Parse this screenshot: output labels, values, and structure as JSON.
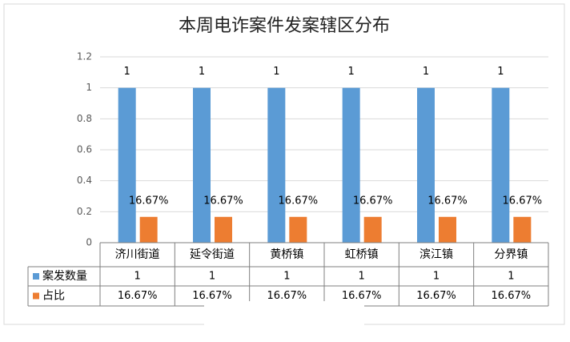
{
  "chart_data": {
    "type": "bar",
    "title": "本周电诈案件发案辖区分布",
    "categories": [
      "济川街道",
      "延令街道",
      "黄桥镇",
      "虹桥镇",
      "滨江镇",
      "分界镇"
    ],
    "series": [
      {
        "name": "案发数量",
        "color": "#5b9bd5",
        "values": [
          1,
          1,
          1,
          1,
          1,
          1
        ]
      },
      {
        "name": "占比",
        "color": "#ed7d31",
        "values": [
          0.1667,
          0.1667,
          0.1667,
          0.1667,
          0.1667,
          0.1667
        ],
        "value_labels": [
          "16.67%",
          "16.67%",
          "16.67%",
          "16.67%",
          "16.67%",
          "16.67%"
        ]
      }
    ],
    "ylim": [
      0,
      1.2
    ],
    "yticks": [
      0,
      0.2,
      0.4,
      0.6,
      0.8,
      1,
      1.2
    ],
    "grid": true
  }
}
